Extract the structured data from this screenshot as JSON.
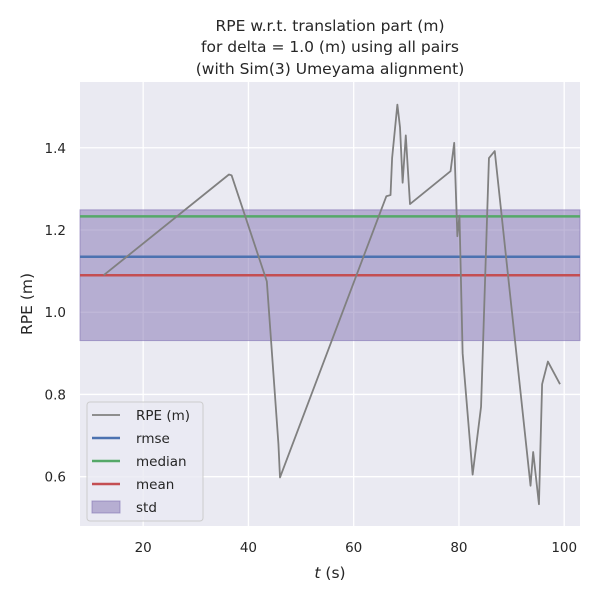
{
  "chart_data": {
    "type": "line",
    "title_lines": [
      "RPE w.r.t. translation part (m)",
      "for delta = 1.0 (m) using all pairs",
      "(with Sim(3) Umeyama alignment)"
    ],
    "xlabel_italic": "t",
    "xlabel_rest": " (s)",
    "ylabel": "RPE (m)",
    "xlim": [
      8,
      103
    ],
    "ylim": [
      0.48,
      1.56
    ],
    "xticks": [
      20,
      40,
      60,
      80,
      100
    ],
    "yticks": [
      0.6,
      0.8,
      1.0,
      1.2,
      1.4
    ],
    "ytick_labels": [
      "0.6",
      "0.8",
      "1.0",
      "1.2",
      "1.4"
    ],
    "grid": true,
    "background": "#EAEAF2",
    "legend_position": "lower-left",
    "series": [
      {
        "name": "RPE (m)",
        "color": "#808080",
        "x": [
          12.5,
          36.3,
          36.8,
          43.5,
          45.7,
          46.0,
          66.2,
          67.0,
          67.3,
          68.3,
          68.8,
          69.3,
          69.9,
          70.7,
          78.4,
          79.1,
          79.7,
          80.1,
          80.7,
          82.6,
          84.2,
          85.7,
          86.8,
          93.6,
          94.1,
          95.2,
          95.8,
          96.9,
          99.2
        ],
        "y": [
          1.09,
          1.335,
          1.333,
          1.075,
          0.68,
          0.598,
          1.282,
          1.285,
          1.375,
          1.505,
          1.45,
          1.315,
          1.43,
          1.263,
          1.343,
          1.412,
          1.185,
          1.235,
          0.9,
          0.605,
          0.77,
          1.375,
          1.392,
          0.578,
          0.66,
          0.533,
          0.825,
          0.88,
          0.825
        ]
      }
    ],
    "stats": [
      {
        "name": "rmse",
        "value": 1.135,
        "color": "#4C72B0"
      },
      {
        "name": "median",
        "value": 1.233,
        "color": "#55A868"
      },
      {
        "name": "mean",
        "value": 1.09,
        "color": "#C44E52"
      }
    ],
    "std": {
      "name": "std",
      "low": 0.931,
      "high": 1.249,
      "color": "#8172B2"
    }
  }
}
